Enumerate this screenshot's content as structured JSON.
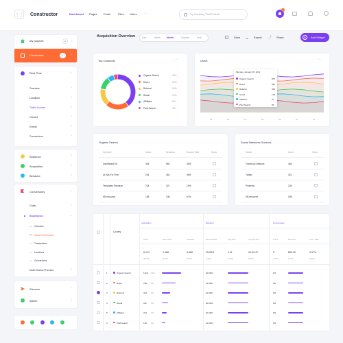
{
  "header": {
    "app_title": "Constructor",
    "nav": [
      "Dashboard",
      "Pages",
      "Posts",
      "Files",
      "Users"
    ],
    "more": "···",
    "search_placeholder": "Try searching \"NewProduct\"",
    "notification_count": "4"
  },
  "sidebar": {
    "top_items": [
      {
        "label": "My projects",
        "badge": "1",
        "icon": "home-icon"
      },
      {
        "label": "Constructor",
        "badge": "8",
        "icon": "grid-icon"
      }
    ],
    "realtime": {
      "label": "Real Time",
      "icon": "clock-icon"
    },
    "realtime_items": [
      "Overview",
      "Locations",
      "Traffic Sources",
      "Content",
      "Events",
      "Conversions"
    ],
    "mid_items": [
      {
        "label": "Audience",
        "icon": "users-icon"
      },
      {
        "label": "Acquisition",
        "icon": "shuffle-icon"
      },
      {
        "label": "Behavior",
        "icon": "refresh-icon"
      }
    ],
    "conversions": {
      "label": "Conversions",
      "icon": "flag-icon"
    },
    "conv_items": [
      "Goals",
      "Ecommerce"
    ],
    "ecommerce_items": [
      "Overview",
      "Sales Performance",
      "Transactions",
      "Locations",
      "Conversions"
    ],
    "multi_channel": "Multi-Channel Funnels",
    "bottom_items": [
      {
        "label": "Discover",
        "icon": "send-icon"
      },
      {
        "label": "Admin",
        "icon": "gear-icon"
      }
    ],
    "social_icons": [
      "phone-icon",
      "chat-icon",
      "telegram-icon",
      "whatsapp-icon",
      "messenger-icon"
    ],
    "colors": {
      "active": "#ff6b35",
      "accent": "#7b3ff2"
    }
  },
  "overview": {
    "title": "Acquisition Overview",
    "periods": [
      "Day",
      "Week",
      "Month",
      "Quarter",
      "Year"
    ],
    "active_period": "Month",
    "actions": [
      "Save",
      "Export",
      "Share"
    ],
    "add_widget": "Add Widget"
  },
  "top_channels": {
    "title": "Top Channels",
    "items": [
      {
        "name": "Organic Search",
        "value": "40%",
        "color": "#7b3ff2",
        "share": 40
      },
      {
        "name": "Direct",
        "value": "22%",
        "color": "#ff6b35",
        "share": 22
      },
      {
        "name": "Referral",
        "value": "16%",
        "color": "#f7c948",
        "share": 16
      },
      {
        "name": "Social",
        "value": "12%",
        "color": "#3ccf6e",
        "share": 12
      },
      {
        "name": "Affiliates",
        "value": "6%",
        "color": "#29b6f6",
        "share": 6
      },
      {
        "name": "Paid Search",
        "value": "4%",
        "color": "#e84a7a",
        "share": 4
      }
    ]
  },
  "users_chart": {
    "title": "Users",
    "tooltip_date": "Monday, January 06, 2041",
    "tooltip": [
      {
        "name": "Organic Search",
        "value": "875",
        "color": "#7b3ff2"
      },
      {
        "name": "Direct",
        "value": "362",
        "color": "#ff6b35"
      },
      {
        "name": "Referral",
        "value": "564",
        "color": "#f7c948"
      },
      {
        "name": "Social",
        "value": "123",
        "color": "#3ccf6e"
      },
      {
        "name": "Affiliates",
        "value": "87",
        "color": "#29b6f6"
      },
      {
        "name": "Paid Search",
        "value": "65",
        "color": "#e84a7a"
      }
    ],
    "x_ticks": [
      "05",
      "06",
      "07",
      "08",
      "09",
      "10",
      "11"
    ]
  },
  "organic_search": {
    "title": "Organic Search",
    "columns": [
      "Keyword",
      "Users",
      "Sessions",
      "Bounce Rate",
      "Show"
    ],
    "rows": [
      [
        "Dashboard Kit",
        "454",
        "982",
        "45%"
      ],
      [
        "UI Kits For Free",
        "251",
        "381",
        "56%"
      ],
      [
        "Templates Premium",
        "234",
        "321",
        "19%"
      ],
      [
        "KB resource",
        "196",
        "236",
        "67%"
      ]
    ]
  },
  "social_networks": {
    "title": "Social Networks Sources",
    "columns": [
      "Social",
      "Users",
      "Show"
    ],
    "rows": [
      [
        "Facebook Network",
        "454"
      ],
      [
        "Twitter",
        "321"
      ],
      [
        "Pinterest",
        "234"
      ],
      [
        "KB resource",
        "196"
      ]
    ]
  },
  "big_table": {
    "country_label": "Country",
    "groups": [
      "Acquisition",
      "Behavior",
      "Conversions"
    ],
    "sub_columns": [
      "Users",
      "New Users",
      "Sessions",
      "Bounce Rate",
      "Pag./Ses.",
      "Avg Ses.Dur.",
      "Trans.",
      "Revenue",
      "Conv. Rate"
    ],
    "totals": [
      "6,124",
      "2,388",
      "6,856",
      "45.83%",
      "4.11",
      "00:02:47",
      "5",
      "$30.00",
      "0.57%"
    ],
    "totals_sub": [
      "(6.24%)",
      "(6.2%)",
      "(6.5%)",
      "(6.4%)",
      "(6.3%)",
      "(5.9%)",
      "(2.2%)",
      "(1.7%)",
      "(2.5%)"
    ],
    "rows": [
      {
        "n": "1",
        "name": "Organic Search",
        "color": "#7b3ff2",
        "users": "1,811",
        "pct": "91%",
        "checked": false
      },
      {
        "n": "2",
        "name": "Direct",
        "color": "#ff6b35",
        "users": "786",
        "pct": "8%",
        "checked": false
      },
      {
        "n": "3",
        "name": "Referral",
        "color": "#f7c948",
        "users": "416",
        "pct": "4%",
        "checked": true
      },
      {
        "n": "4",
        "name": "Social",
        "color": "#3ccf6e",
        "users": "311",
        "pct": "3%",
        "checked": false
      },
      {
        "n": "5",
        "name": "Affiliates",
        "color": "#29b6f6",
        "users": "242",
        "pct": "2%",
        "checked": false
      },
      {
        "n": "6",
        "name": "Paid Search",
        "color": "#e84a7a",
        "users": "130",
        "pct": "1%",
        "checked": false
      }
    ],
    "row_bounce": "40.39%",
    "row_pag": "2.37%",
    "row_conv": "0%"
  }
}
